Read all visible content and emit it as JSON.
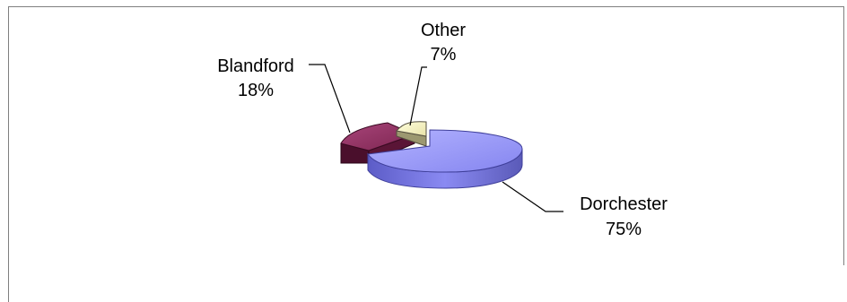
{
  "chart_data": {
    "type": "pie",
    "style": "3d-exploded",
    "title": "",
    "legend": "none",
    "slices": [
      {
        "name": "Dorchester",
        "value": 75,
        "label": "75%",
        "color": "#9999ff"
      },
      {
        "name": "Blandford",
        "value": 18,
        "label": "18%",
        "color": "#993366"
      },
      {
        "name": "Other",
        "value": 7,
        "label": "7%",
        "color": "#ffffcc"
      }
    ]
  }
}
